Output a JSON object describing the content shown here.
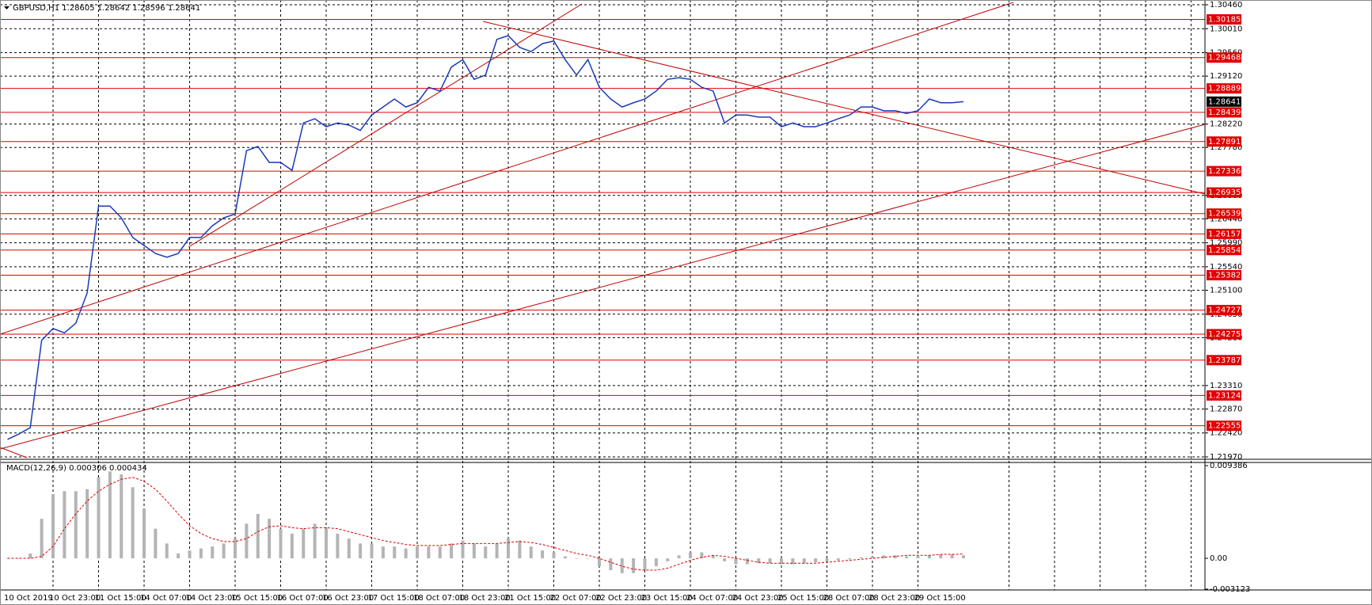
{
  "chart_data": [
    {
      "type": "line",
      "title": "GBPUSD,H1  1.28605 1.28642 1.28596 1.28641",
      "categories": [
        "10 Oct 2019",
        null,
        null,
        null,
        "10 Oct 23:00",
        null,
        null,
        null,
        "11 Oct 15:00",
        null,
        null,
        null,
        "14 Oct 07:00",
        null,
        null,
        null,
        "14 Oct 23:00",
        null,
        null,
        null,
        "15 Oct 15:00",
        null,
        null,
        null,
        "16 Oct 07:00",
        null,
        null,
        null,
        "16 Oct 23:00",
        null,
        null,
        null,
        "17 Oct 15:00",
        null,
        null,
        null,
        "18 Oct 07:00",
        null,
        null,
        null,
        "18 Oct 23:00",
        null,
        null,
        null,
        "21 Oct 15:00",
        null,
        null,
        null,
        "22 Oct 07:00",
        null,
        null,
        null,
        "22 Oct 23:00",
        null,
        null,
        null,
        "23 Oct 15:00",
        null,
        null,
        null,
        "24 Oct 07:00",
        null,
        null,
        null,
        "24 Oct 23:00",
        null,
        null,
        null,
        "25 Oct 15:00",
        null,
        null,
        null,
        "28 Oct 07:00",
        null,
        null,
        null,
        "28 Oct 23:00",
        null,
        null,
        null,
        "29 Oct 15:00",
        null,
        null,
        null,
        null
      ],
      "values": [
        1.223,
        1.224,
        1.2252,
        1.2416,
        1.2438,
        1.243,
        1.2448,
        1.2505,
        1.2668,
        1.2668,
        1.2646,
        1.2609,
        1.2594,
        1.2579,
        1.2572,
        1.2579,
        1.2609,
        1.2609,
        1.2631,
        1.2646,
        1.2653,
        1.2772,
        1.278,
        1.275,
        1.275,
        1.2735,
        1.2824,
        1.2832,
        1.2817,
        1.2824,
        1.282,
        1.281,
        1.2839,
        1.2854,
        1.2869,
        1.2854,
        1.2862,
        1.2891,
        1.2884,
        1.2929,
        1.2943,
        1.2906,
        1.2914,
        1.2981,
        1.2988,
        1.2966,
        1.2958,
        1.2973,
        1.2978,
        1.2943,
        1.2914,
        1.2943,
        1.2891,
        1.2869,
        1.2854,
        1.2862,
        1.2869,
        1.2884,
        1.2906,
        1.2909,
        1.2906,
        1.2891,
        1.2884,
        1.2824,
        1.2839,
        1.2839,
        1.2835,
        1.2835,
        1.2817,
        1.2824,
        1.2817,
        1.2817,
        1.2824,
        1.2832,
        1.2839,
        1.2854,
        1.2854,
        1.2847,
        1.2847,
        1.2842,
        1.2847,
        1.2869,
        1.2862,
        1.2862,
        1.28641
      ],
      "color": "#1a3ab8",
      "ylim": [
        1.2197,
        1.3046
      ],
      "yticks": [
        {
          "value": 1.3046,
          "label": "1.30460"
        },
        {
          "value": 1.3001,
          "label": "1.30010"
        },
        {
          "value": 1.2956,
          "label": "1.29560"
        },
        {
          "value": 1.2912,
          "label": "1.29120"
        },
        {
          "value": 1.2822,
          "label": "1.28220"
        },
        {
          "value": 1.2778,
          "label": "1.27780"
        },
        {
          "value": 1.2688,
          "label": "1.26880"
        },
        {
          "value": 1.2644,
          "label": "1.26440"
        },
        {
          "value": 1.2599,
          "label": "1.25990"
        },
        {
          "value": 1.2554,
          "label": "1.25540"
        },
        {
          "value": 1.251,
          "label": "1.25100"
        },
        {
          "value": 1.2465,
          "label": "1.24650"
        },
        {
          "value": 1.2421,
          "label": "1.24210"
        },
        {
          "value": 1.2331,
          "label": "1.23310"
        },
        {
          "value": 1.2287,
          "label": "1.22870"
        },
        {
          "value": 1.2242,
          "label": "1.22420"
        },
        {
          "value": 1.2197,
          "label": "1.21970"
        }
      ],
      "levels": [
        1.30185,
        1.29468,
        1.28889,
        1.28439,
        1.27891,
        1.27336,
        1.26935,
        1.26539,
        1.26157,
        1.25854,
        1.25382,
        1.24727,
        1.24275,
        1.23787,
        1.23124,
        1.22555
      ],
      "level_color": "#e00000",
      "last_price": 1.28641,
      "grid": true
    },
    {
      "type": "macd",
      "title": "MACD(12,26,9) 0.000306 0.000434",
      "series": [
        {
          "type": "bar",
          "color": "#b4b4b4",
          "values": [
            0,
            0,
            0.0005,
            0.004,
            0.0065,
            0.0068,
            0.0068,
            0.007,
            0.0082,
            0.0088,
            0.0085,
            0.0072,
            0.005,
            0.003,
            0.0015,
            0.0005,
            0.0008,
            0.001,
            0.0012,
            0.0015,
            0.002,
            0.0035,
            0.0045,
            0.004,
            0.003,
            0.0025,
            0.003,
            0.0035,
            0.003,
            0.0025,
            0.002,
            0.0015,
            0.0015,
            0.0012,
            0.0012,
            0.001,
            0.0012,
            0.0012,
            0.0012,
            0.0015,
            0.0018,
            0.0015,
            0.0012,
            0.0015,
            0.002,
            0.0018,
            0.0012,
            0.0008,
            0.0006,
            0.0002,
            0,
            0,
            -0.0008,
            -0.0012,
            -0.0015,
            -0.0015,
            -0.0012,
            -0.0008,
            -0.0003,
            0.0003,
            0.0006,
            0.0006,
            0.0003,
            -0.0003,
            -0.0006,
            -0.0006,
            -0.0005,
            -0.0005,
            -0.0006,
            -0.0006,
            -0.0005,
            -0.0004,
            -0.0003,
            -0.0002,
            -0.0001,
            0.0001,
            0.0002,
            0.0003,
            0.0003,
            0.0002,
            0.0002,
            0.0003,
            0.0004,
            0.0004,
            0.000306
          ]
        },
        {
          "type": "line",
          "color": "#e00000",
          "values": [
            0,
            0,
            0,
            0.0002,
            0.0012,
            0.003,
            0.0045,
            0.0058,
            0.0068,
            0.0075,
            0.008,
            0.0082,
            0.0078,
            0.007,
            0.0058,
            0.0045,
            0.0033,
            0.0025,
            0.002,
            0.0017,
            0.0017,
            0.002,
            0.0027,
            0.0032,
            0.0033,
            0.0031,
            0.003,
            0.0031,
            0.0031,
            0.003,
            0.0027,
            0.0024,
            0.0021,
            0.0018,
            0.0016,
            0.0014,
            0.0013,
            0.0013,
            0.0013,
            0.0014,
            0.0015,
            0.0015,
            0.0015,
            0.0015,
            0.0016,
            0.0017,
            0.0016,
            0.0014,
            0.0011,
            0.0008,
            0.0005,
            0.0003,
            0,
            -0.0004,
            -0.0008,
            -0.0011,
            -0.0012,
            -0.0012,
            -0.001,
            -0.0006,
            -0.0002,
            0.0001,
            0.0003,
            0.0002,
            0,
            -0.0002,
            -0.0004,
            -0.0005,
            -0.0005,
            -0.0005,
            -0.0005,
            -0.0005,
            -0.0004,
            -0.0003,
            -0.0002,
            -0.0001,
            0,
            0.0001,
            0.0002,
            0.0003,
            0.0003,
            0.0003,
            0.0004,
            0.0004,
            0.000434
          ]
        }
      ],
      "ylim": [
        -0.003123,
        0.009386
      ],
      "yticks": [
        0.009386,
        {
          "value": 0,
          "label": "0.00"
        },
        -0.003123
      ]
    }
  ]
}
